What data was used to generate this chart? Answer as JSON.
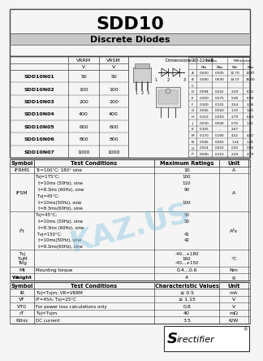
{
  "title": "SDD10",
  "subtitle": "Discrete Diodes",
  "bg_color": "#f5f5f5",
  "part_rows": [
    [
      "SDD10N01",
      "50",
      "50"
    ],
    [
      "SDD10N02",
      "100",
      "100"
    ],
    [
      "SDD10N03",
      "200",
      "200"
    ],
    [
      "SDD10N04",
      "400",
      "400"
    ],
    [
      "SDD10N05",
      "600",
      "600"
    ],
    [
      "SDD10N06",
      "800",
      "800"
    ],
    [
      "SDD10N07",
      "1000",
      "1000"
    ]
  ],
  "dim_rows": [
    [
      "A",
      "0.500",
      "0.505",
      "12.70",
      "12.87"
    ],
    [
      "B",
      "0.580",
      "0.630",
      "14.73",
      "16.00"
    ],
    [
      "C",
      "",
      "",
      "",
      ""
    ],
    [
      "D",
      "0.094",
      "0.241",
      "2.39",
      "6.12"
    ],
    [
      "E",
      "0.200",
      "0.275",
      "5.08",
      "6.99"
    ],
    [
      "F",
      "0.100",
      "0.125",
      "2.54",
      "3.18"
    ],
    [
      "G",
      "0.045",
      "0.060",
      "1.19",
      "1.65"
    ],
    [
      "H",
      "0.110",
      "0.250",
      "2.79",
      "6.64"
    ],
    [
      "J",
      "0.030",
      "0.040",
      "0.76",
      "1.01"
    ],
    [
      "K",
      "0.105",
      "...",
      "2.67",
      "..."
    ],
    [
      "M",
      "0.170",
      "0.190",
      "4.32",
      "4.82"
    ],
    [
      "N",
      "0.045",
      "0.055",
      "1.14",
      "1.76"
    ],
    [
      "Q",
      "0.014",
      "0.022",
      "0.35",
      "0.55"
    ],
    [
      "P",
      "0.090",
      "0.110",
      "2.29",
      "2.79"
    ]
  ],
  "max_rows": [
    {
      "sym": "IFRMS",
      "cond": "Tc=100°C; 180° sine",
      "val": "10",
      "unit": "A",
      "rh": 1
    },
    {
      "sym": "IFSM",
      "cond1": "Tvj=175°C;",
      "cond2": "  t=10ms (50Hz), sine",
      "cond3": "  t=8.3ms (60Hz), sine",
      "cond4": " Tvj=45°C;",
      "cond5": "  t=10ms(50Hz), sine",
      "cond6": "  t=8.3ms(60Hz), sine",
      "val1": "100",
      "val2": "110",
      "val3": "90",
      "val4": "",
      "val5": "100",
      "unit": "A",
      "rh": 6
    },
    {
      "sym": "i²t",
      "cond1": "Tvj=45°C;",
      "cond2": "  t=10ms (50Hz), sine",
      "cond3": "  t=8.3ms (60Hz), sine",
      "cond4": " Tvj=150°C;",
      "cond5": "  t=10ms(50Hz), sine",
      "cond6": "  t=8.3ms(60Hz), sine",
      "val1": "50",
      "val2": "50",
      "val3": "",
      "val4": "41",
      "val5": "42",
      "unit": "A²s",
      "rh": 6
    },
    {
      "sym": "Tvj\nTvjM\nTstg",
      "cond": "",
      "val": "-40...+180\n160\n-40...+150",
      "unit": "°C",
      "rh": 3
    },
    {
      "sym": "Mt",
      "cond": "Mounting torque",
      "val": "0.4...0.6",
      "unit": "Nm",
      "rh": 1
    },
    {
      "sym": "Weight",
      "cond": "",
      "val": "4",
      "unit": "g",
      "rh": 1
    }
  ],
  "char_rows": [
    [
      "IR",
      "Tvj=Tvjm; VR=VRRM",
      "≤ 0.5",
      "mA"
    ],
    [
      "VF",
      "IF=45A; Tvj=25°C",
      "≤ 1.15",
      "V"
    ],
    [
      "VT0",
      "For power loss calculations only",
      "0.8",
      "V"
    ],
    [
      "rT",
      "Tvj=Tvjm",
      "40",
      "mΩ"
    ],
    [
      "Rthic",
      "DC current",
      "3.5",
      "K/W"
    ]
  ]
}
